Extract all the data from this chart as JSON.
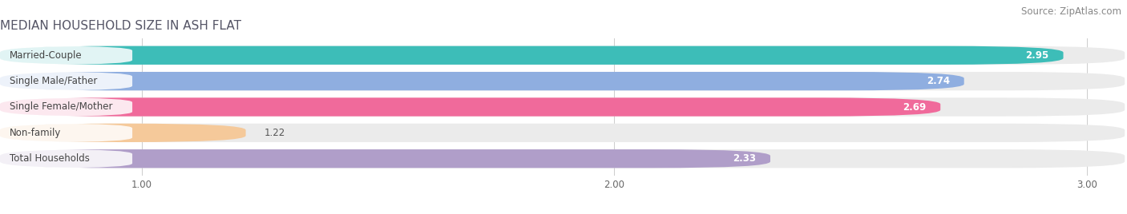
{
  "title": "MEDIAN HOUSEHOLD SIZE IN ASH FLAT",
  "source": "Source: ZipAtlas.com",
  "categories": [
    "Married-Couple",
    "Single Male/Father",
    "Single Female/Mother",
    "Non-family",
    "Total Households"
  ],
  "values": [
    2.95,
    2.74,
    2.69,
    1.22,
    2.33
  ],
  "bar_colors": [
    "#3dbdb8",
    "#8faee0",
    "#f06a9b",
    "#f5c99a",
    "#b09ec9"
  ],
  "bar_bg_color": "#ebebeb",
  "xlim_min": 0.7,
  "xlim_max": 3.08,
  "xticks": [
    1.0,
    2.0,
    3.0
  ],
  "title_fontsize": 11,
  "label_fontsize": 8.5,
  "value_fontsize": 8.5,
  "source_fontsize": 8.5,
  "background_color": "#ffffff",
  "bar_height": 0.72,
  "plot_bg": "#f5f5f5"
}
